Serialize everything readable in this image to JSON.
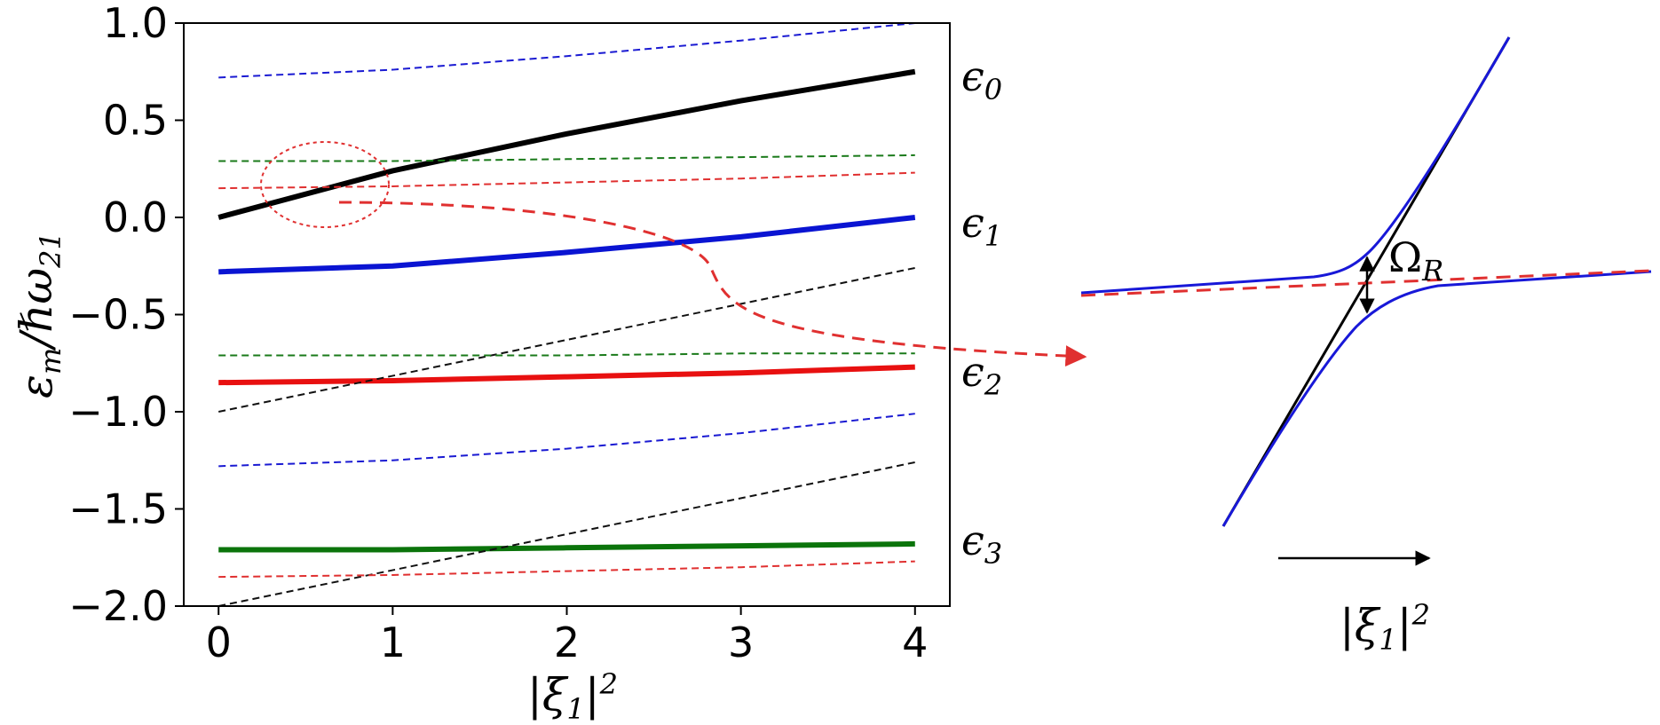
{
  "chart_data": [
    {
      "type": "line",
      "xlabel": "|ξ₁|²",
      "ylabel": "εm/ℏω21",
      "xlim": [
        -0.2,
        4.2
      ],
      "ylim": [
        -2.0,
        1.0
      ],
      "x_ticks": [
        "0",
        "1",
        "2",
        "3",
        "4"
      ],
      "y_ticks": [
        "1.0",
        "0.5",
        "0.0",
        "−0.5",
        "−1.0",
        "−1.5",
        "−2.0"
      ],
      "grid": false,
      "series": [
        {
          "style": "solid-thick",
          "color": "#000000",
          "x": [
            0,
            1,
            2,
            3,
            4
          ],
          "y": [
            0.0,
            0.24,
            0.43,
            0.6,
            0.75
          ],
          "label": "ϵ0"
        },
        {
          "style": "solid-thick",
          "color": "#0a14d2",
          "x": [
            0,
            1,
            2,
            3,
            4
          ],
          "y": [
            -0.28,
            -0.25,
            -0.18,
            -0.1,
            0.0
          ],
          "label": "ϵ1"
        },
        {
          "style": "solid-thick",
          "color": "#e81010",
          "x": [
            0,
            1,
            2,
            3,
            4
          ],
          "y": [
            -0.85,
            -0.84,
            -0.82,
            -0.8,
            -0.77
          ],
          "label": "ϵ2"
        },
        {
          "style": "solid-thick",
          "color": "#0b740b",
          "x": [
            0,
            1,
            2,
            3,
            4
          ],
          "y": [
            -1.71,
            -1.71,
            -1.7,
            -1.69,
            -1.68
          ],
          "label": "ϵ3"
        },
        {
          "style": "dashed",
          "color": "#1a1ad2",
          "x": [
            0,
            1,
            2,
            3,
            4
          ],
          "y": [
            0.72,
            0.76,
            0.83,
            0.91,
            1.0
          ]
        },
        {
          "style": "dashed",
          "color": "#1a7a1a",
          "x": [
            0,
            1,
            2,
            3,
            4
          ],
          "y": [
            0.29,
            0.29,
            0.3,
            0.31,
            0.32
          ]
        },
        {
          "style": "dashed",
          "color": "#e03030",
          "x": [
            0,
            1,
            2,
            3,
            4
          ],
          "y": [
            0.15,
            0.16,
            0.18,
            0.2,
            0.23
          ]
        },
        {
          "style": "dashed",
          "color": "#111111",
          "x": [
            0,
            4
          ],
          "y": [
            -1.0,
            -0.26
          ]
        },
        {
          "style": "dashed",
          "color": "#1a7a1a",
          "x": [
            0,
            1,
            2,
            3,
            4
          ],
          "y": [
            -0.71,
            -0.71,
            -0.71,
            -0.7,
            -0.7
          ]
        },
        {
          "style": "dashed",
          "color": "#1a1ad2",
          "x": [
            0,
            1,
            2,
            3,
            4
          ],
          "y": [
            -1.28,
            -1.25,
            -1.19,
            -1.11,
            -1.01
          ]
        },
        {
          "style": "dashed",
          "color": "#111111",
          "x": [
            0,
            4
          ],
          "y": [
            -2.0,
            -1.26
          ]
        },
        {
          "style": "dashed",
          "color": "#e03030",
          "x": [
            0,
            1,
            2,
            3,
            4
          ],
          "y": [
            -1.85,
            -1.84,
            -1.82,
            -1.8,
            -1.77
          ]
        }
      ],
      "annotations": [
        {
          "type": "dotted-ellipse",
          "color": "#e03030",
          "x": 0.5,
          "y": 0.18
        },
        {
          "type": "dashed-curve-arrow",
          "color": "#e03030",
          "from": [
            0.7,
            0.09
          ],
          "to": "inset"
        }
      ]
    },
    {
      "type": "line",
      "title": "inset",
      "xlabel": "|ξ₁|²",
      "gap_label": "ΩR",
      "series": [
        {
          "style": "solid",
          "color": "#000000",
          "role": "crossing diagonal"
        },
        {
          "style": "solid",
          "color": "#1818d8",
          "role": "upper anticrossing branch"
        },
        {
          "style": "solid",
          "color": "#1818d8",
          "role": "lower anticrossing branch"
        },
        {
          "style": "dashed",
          "color": "#e03030",
          "role": "uncoupled level"
        }
      ]
    }
  ]
}
